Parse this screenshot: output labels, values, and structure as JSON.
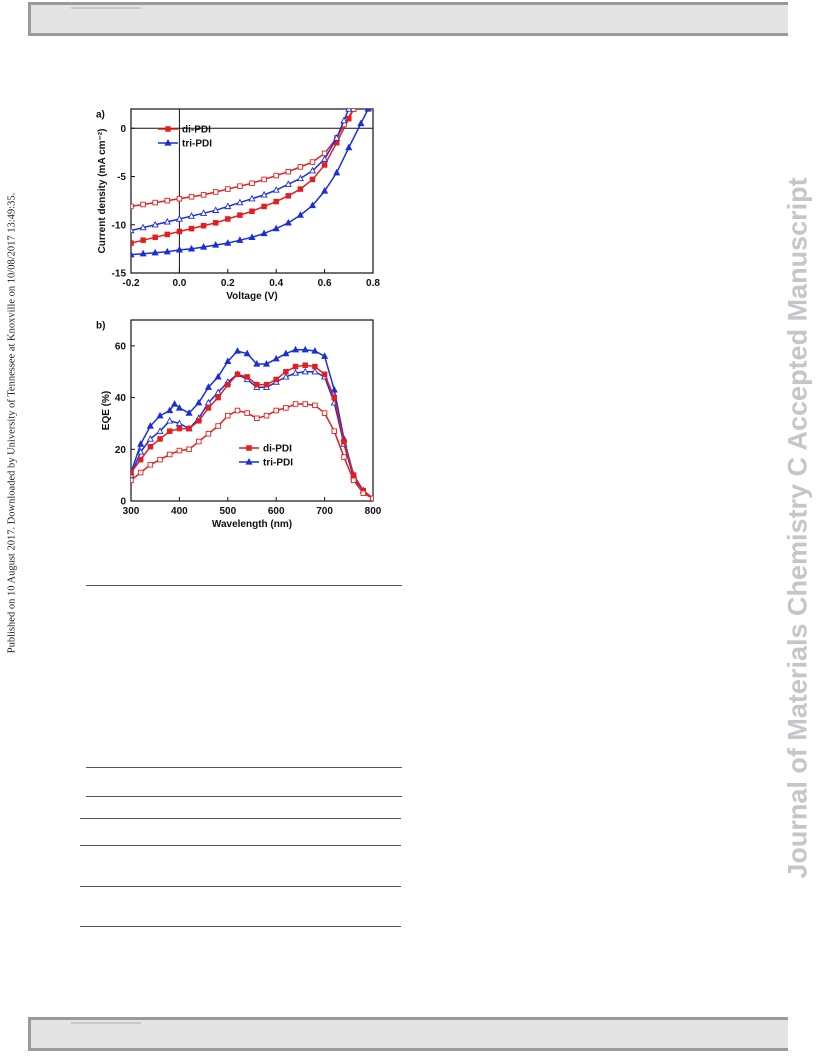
{
  "side_note": "Published on 10 August 2017. Downloaded by University of Tennessee at Knoxville on 10/08/2017 13:49:35.",
  "watermark": "Journal of Materials Chemistry C Accepted Manuscript",
  "colors": {
    "red": "#e41e1e",
    "blue": "#1a2fd6",
    "header_bar": "#e4e4e4",
    "watermark": "#c4c6cc"
  },
  "chart_data": [
    {
      "panel_label": "a)",
      "type": "line",
      "xlabel": "Voltage (V)",
      "ylabel": "Current density (mA cm⁻²)",
      "xlim": [
        -0.2,
        0.8
      ],
      "ylim": [
        -15,
        2
      ],
      "xticks": [
        "-0.2",
        "0.0",
        "0.2",
        "0.4",
        "0.6",
        "0.8"
      ],
      "yticks": [
        "0",
        "-5",
        "-10",
        "-15"
      ],
      "legend": [
        "di-PDI",
        "tri-PDI"
      ],
      "legend_position": "upper-left",
      "series": [
        {
          "name": "di-PDI",
          "color": "red",
          "marker": "square-filled",
          "x": [
            -0.2,
            -0.15,
            -0.1,
            -0.05,
            0.0,
            0.05,
            0.1,
            0.15,
            0.2,
            0.25,
            0.3,
            0.35,
            0.4,
            0.45,
            0.5,
            0.55,
            0.6,
            0.65,
            0.7,
            0.72
          ],
          "y": [
            -11.9,
            -11.6,
            -11.3,
            -11.0,
            -10.7,
            -10.4,
            -10.1,
            -9.8,
            -9.4,
            -9.0,
            -8.6,
            -8.1,
            -7.6,
            -7.0,
            -6.3,
            -5.3,
            -3.8,
            -1.5,
            1.0,
            2.0
          ]
        },
        {
          "name": "di-PDI (dark)",
          "color": "red",
          "marker": "square-open",
          "x": [
            -0.2,
            -0.15,
            -0.1,
            -0.05,
            0.0,
            0.05,
            0.1,
            0.15,
            0.2,
            0.25,
            0.3,
            0.35,
            0.4,
            0.45,
            0.5,
            0.55,
            0.6,
            0.65,
            0.68,
            0.72
          ],
          "y": [
            -8.1,
            -7.9,
            -7.7,
            -7.5,
            -7.3,
            -7.1,
            -6.9,
            -6.6,
            -6.3,
            -6.0,
            -5.7,
            -5.3,
            -4.9,
            -4.5,
            -4.0,
            -3.5,
            -2.6,
            -1.0,
            0.4,
            2.0
          ]
        },
        {
          "name": "tri-PDI",
          "color": "blue",
          "marker": "triangle-filled",
          "x": [
            -0.2,
            -0.15,
            -0.1,
            -0.05,
            0.0,
            0.05,
            0.1,
            0.15,
            0.2,
            0.25,
            0.3,
            0.35,
            0.4,
            0.45,
            0.5,
            0.55,
            0.6,
            0.65,
            0.7,
            0.75,
            0.78
          ],
          "y": [
            -13.1,
            -13.0,
            -12.9,
            -12.8,
            -12.6,
            -12.5,
            -12.3,
            -12.1,
            -11.9,
            -11.6,
            -11.3,
            -10.9,
            -10.4,
            -9.8,
            -9.0,
            -8.0,
            -6.5,
            -4.6,
            -2.0,
            0.5,
            2.0
          ]
        },
        {
          "name": "tri-PDI (dark)",
          "color": "blue",
          "marker": "triangle-open",
          "x": [
            -0.2,
            -0.15,
            -0.1,
            -0.05,
            0.0,
            0.05,
            0.1,
            0.15,
            0.2,
            0.25,
            0.3,
            0.35,
            0.4,
            0.45,
            0.5,
            0.55,
            0.6,
            0.65,
            0.68,
            0.7
          ],
          "y": [
            -10.6,
            -10.3,
            -10.0,
            -9.7,
            -9.4,
            -9.1,
            -8.8,
            -8.5,
            -8.1,
            -7.7,
            -7.3,
            -6.9,
            -6.4,
            -5.8,
            -5.2,
            -4.4,
            -3.2,
            -1.0,
            0.8,
            2.0
          ]
        }
      ]
    },
    {
      "panel_label": "b)",
      "type": "line",
      "xlabel": "Wavelength (nm)",
      "ylabel": "EQE (%)",
      "xlim": [
        300,
        800
      ],
      "ylim": [
        0,
        70
      ],
      "xticks": [
        "300",
        "400",
        "500",
        "600",
        "700",
        "800"
      ],
      "yticks": [
        "0",
        "20",
        "40",
        "60"
      ],
      "legend": [
        "di-PDI",
        "tri-PDI"
      ],
      "legend_position": "lower-center",
      "series": [
        {
          "name": "tri-PDI",
          "color": "blue",
          "marker": "triangle-filled",
          "x": [
            300,
            320,
            340,
            360,
            380,
            390,
            400,
            420,
            440,
            460,
            480,
            500,
            520,
            540,
            560,
            580,
            600,
            620,
            640,
            660,
            680,
            700,
            720,
            740,
            760,
            780,
            800
          ],
          "y": [
            11,
            22,
            29,
            33,
            35,
            37.5,
            36,
            34,
            38,
            44,
            48,
            54,
            58,
            57,
            53,
            53,
            55,
            57,
            58.5,
            58.5,
            58,
            56,
            43,
            24,
            10,
            4,
            1
          ]
        },
        {
          "name": "tri-PDI (open)",
          "color": "blue",
          "marker": "triangle-open",
          "x": [
            300,
            320,
            340,
            360,
            380,
            400,
            420,
            440,
            460,
            480,
            500,
            520,
            540,
            560,
            580,
            600,
            620,
            640,
            660,
            680,
            700,
            720,
            740,
            760,
            780,
            800
          ],
          "y": [
            10,
            19,
            24,
            27,
            31,
            30,
            28,
            32,
            38,
            42,
            46,
            49,
            47,
            44,
            44,
            46,
            48,
            49.5,
            50,
            50,
            48,
            38,
            22,
            9,
            4,
            1
          ]
        },
        {
          "name": "di-PDI",
          "color": "red",
          "marker": "square-filled",
          "x": [
            300,
            320,
            340,
            360,
            380,
            400,
            420,
            440,
            460,
            480,
            500,
            520,
            540,
            560,
            580,
            600,
            620,
            640,
            660,
            680,
            700,
            720,
            740,
            760,
            780,
            800
          ],
          "y": [
            11,
            16,
            21,
            24,
            27,
            28,
            28,
            31,
            36,
            40,
            45,
            49,
            48,
            45,
            45,
            47,
            50,
            52,
            52.5,
            52,
            49,
            40,
            23,
            10,
            4,
            1
          ]
        },
        {
          "name": "di-PDI (open)",
          "color": "red",
          "marker": "square-open",
          "x": [
            300,
            320,
            340,
            360,
            380,
            400,
            420,
            440,
            460,
            480,
            500,
            520,
            540,
            560,
            580,
            600,
            620,
            640,
            660,
            680,
            700,
            720,
            740,
            760,
            780,
            800
          ],
          "y": [
            8,
            11,
            14,
            16,
            18,
            19.5,
            20,
            23,
            26,
            29,
            33,
            35,
            34,
            32,
            33,
            35,
            36,
            37.5,
            37.5,
            37,
            34,
            27,
            17,
            8,
            3,
            1
          ]
        }
      ]
    }
  ]
}
